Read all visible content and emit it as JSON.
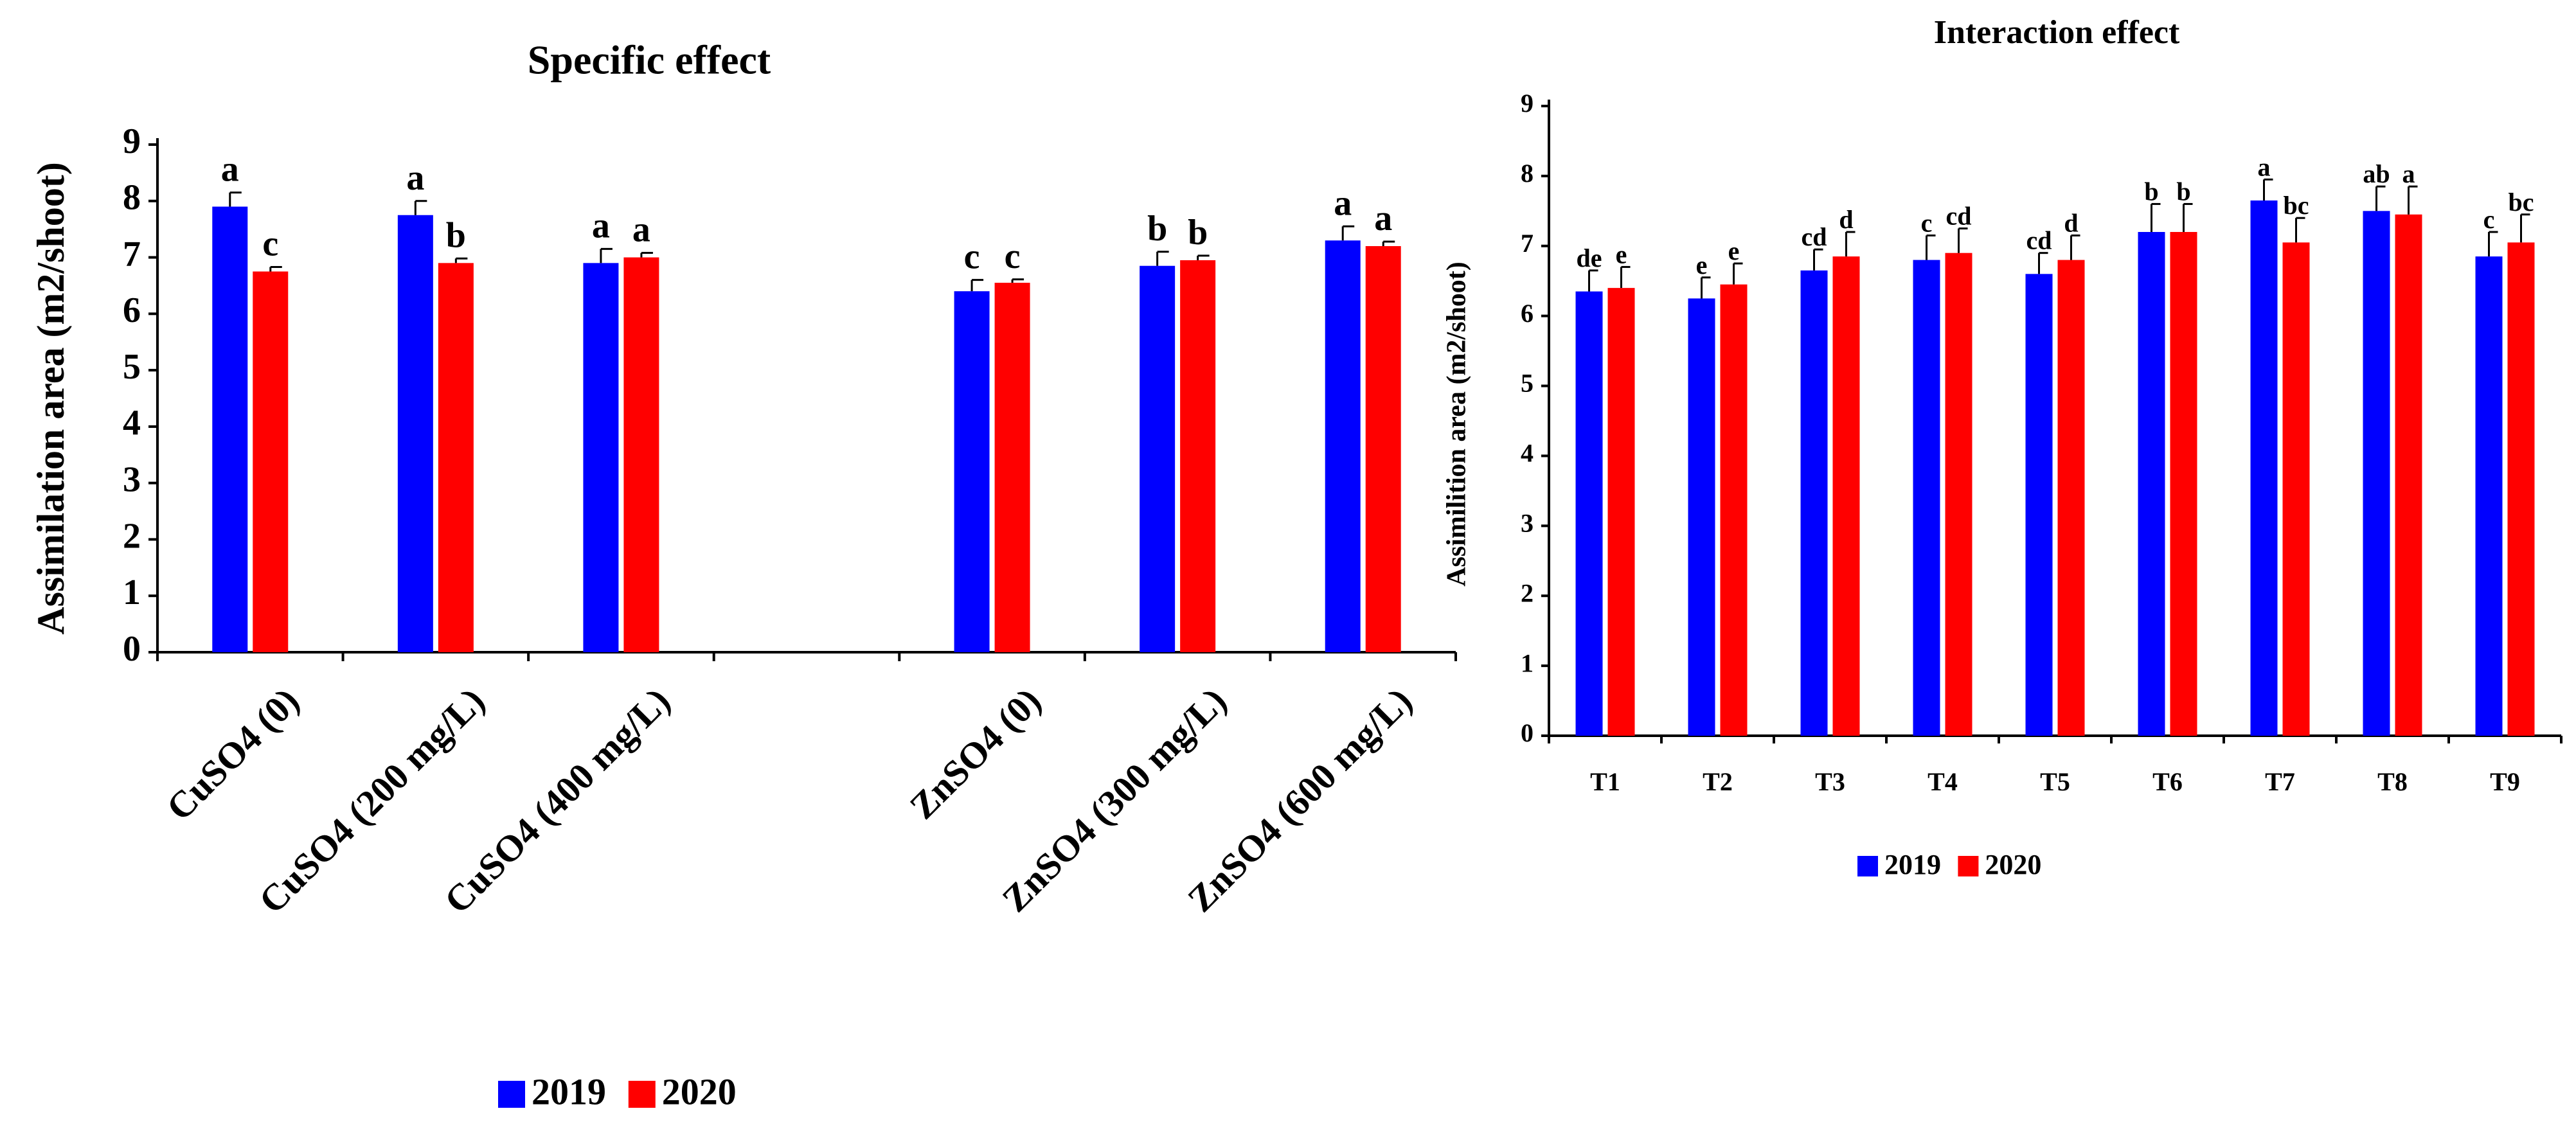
{
  "colors": {
    "series_2019": "#0000ff",
    "series_2020": "#ff0000",
    "axis": "#000000"
  },
  "chart_data": [
    {
      "type": "bar",
      "title": "Specific effect",
      "ylabel": "Assimilation area (m2/shoot)",
      "xlabel": "",
      "ylim": [
        0,
        9
      ],
      "yticks": [
        0,
        1,
        2,
        3,
        4,
        5,
        6,
        7,
        8,
        9
      ],
      "categories": [
        "CuSO4 (0)",
        "CuSO4 (200 mg/L)",
        "CuSO4 (400 mg/L)",
        "",
        "ZnSO4 (0)",
        "ZnSO4 (300 mg/L)",
        "ZnSO4 (600 mg/L)"
      ],
      "series": [
        {
          "name": "2019",
          "values": [
            7.9,
            7.75,
            6.9,
            null,
            6.4,
            6.85,
            7.3
          ],
          "errors": [
            0.25,
            0.25,
            0.25,
            null,
            0.2,
            0.25,
            0.25
          ],
          "letters": [
            "a",
            "a",
            "a",
            "",
            "c",
            "b",
            "a"
          ]
        },
        {
          "name": "2020",
          "values": [
            6.75,
            6.9,
            7.0,
            null,
            6.55,
            6.95,
            7.2
          ],
          "errors": [
            0.08,
            0.08,
            0.08,
            null,
            0.06,
            0.08,
            0.08
          ],
          "letters": [
            "c",
            "b",
            "a",
            "",
            "c",
            "b",
            "a"
          ]
        }
      ],
      "legend": [
        "2019",
        "2020"
      ],
      "legend_position": "bottom-center"
    },
    {
      "type": "bar",
      "title": "Interaction effect",
      "ylabel": "Assimilition area (m2/shoot)",
      "xlabel": "",
      "ylim": [
        0,
        9
      ],
      "yticks": [
        0,
        1,
        2,
        3,
        4,
        5,
        6,
        7,
        8,
        9
      ],
      "categories": [
        "T1",
        "T2",
        "T3",
        "T4",
        "T5",
        "T6",
        "T7",
        "T8",
        "T9"
      ],
      "series": [
        {
          "name": "2019",
          "values": [
            6.35,
            6.25,
            6.65,
            6.8,
            6.6,
            7.2,
            7.65,
            7.5,
            6.85
          ],
          "errors": [
            0.3,
            0.3,
            0.3,
            0.35,
            0.3,
            0.4,
            0.3,
            0.35,
            0.35
          ],
          "letters": [
            "de",
            "e",
            "cd",
            "c",
            "cd",
            "b",
            "a",
            "ab",
            "c"
          ]
        },
        {
          "name": "2020",
          "values": [
            6.4,
            6.45,
            6.85,
            6.9,
            6.8,
            7.2,
            7.05,
            7.45,
            7.05
          ],
          "errors": [
            0.3,
            0.3,
            0.35,
            0.35,
            0.35,
            0.4,
            0.35,
            0.4,
            0.4
          ],
          "letters": [
            "e",
            "e",
            "d",
            "cd",
            "d",
            "b",
            "bc",
            "a",
            "bc"
          ]
        }
      ],
      "legend": [
        "2019",
        "2020"
      ],
      "legend_position": "bottom-center"
    }
  ]
}
